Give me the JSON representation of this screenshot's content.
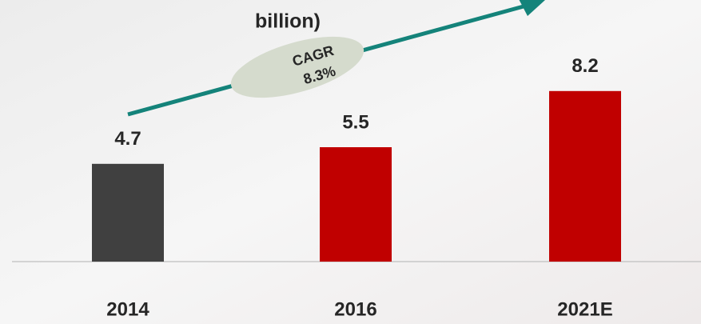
{
  "chart_data": {
    "type": "bar",
    "title": "billion)",
    "categories": [
      "2014",
      "2016",
      "2021E"
    ],
    "values": [
      4.7,
      5.5,
      8.2
    ],
    "colors": [
      "#404040",
      "#c00000",
      "#c00000"
    ],
    "annotation": [
      "CAGR",
      "8.3%"
    ]
  }
}
